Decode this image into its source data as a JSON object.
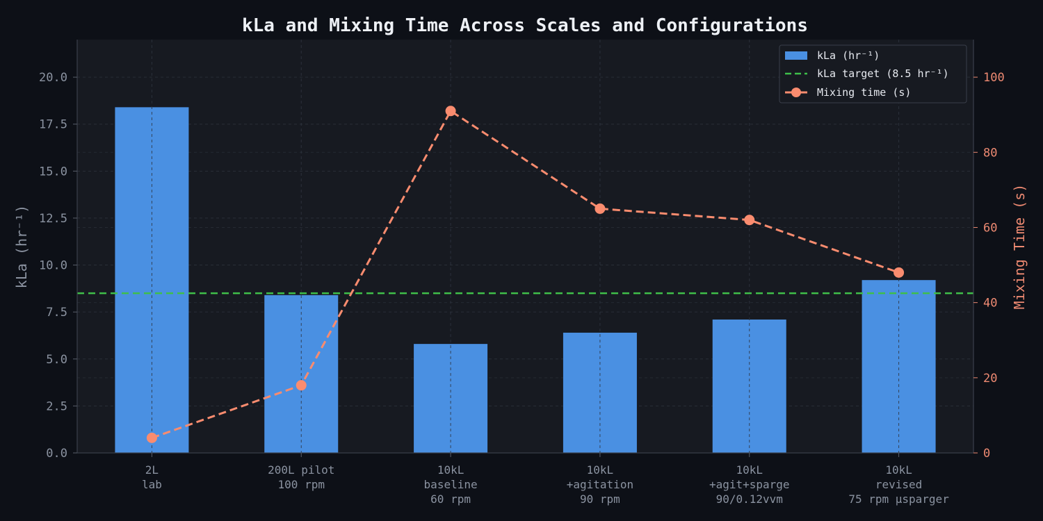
{
  "chart_data": {
    "type": "bar",
    "title": "kLa and Mixing Time Across Scales and Configurations",
    "categories": [
      [
        "2L",
        "lab"
      ],
      [
        "200L pilot",
        "100 rpm"
      ],
      [
        "10kL",
        "baseline",
        "60 rpm"
      ],
      [
        "10kL",
        "+agitation",
        "90 rpm"
      ],
      [
        "10kL",
        "+agit+sparge",
        "90/0.12vvm"
      ],
      [
        "10kL",
        "revised",
        "75 rpm µsparger"
      ]
    ],
    "series": [
      {
        "name": "kLa (hr⁻¹)",
        "type": "bar",
        "axis": "left",
        "values": [
          18.4,
          8.4,
          5.8,
          6.4,
          7.1,
          9.2
        ]
      },
      {
        "name": "Mixing time (s)",
        "type": "line",
        "axis": "right",
        "values": [
          4,
          18,
          91,
          65,
          62,
          48
        ]
      }
    ],
    "reference_line": {
      "name": "kLa target (8.5 hr⁻¹)",
      "value": 8.5,
      "axis": "left"
    },
    "ylabel_left": "kLa (hr⁻¹)",
    "ylabel_right": "Mixing Time (s)",
    "ylim_left": [
      0,
      22
    ],
    "ylim_right": [
      0,
      110
    ],
    "yticks_left": [
      "0.0",
      "2.5",
      "5.0",
      "7.5",
      "10.0",
      "12.5",
      "15.0",
      "17.5",
      "20.0"
    ],
    "yticks_right": [
      "0",
      "20",
      "40",
      "60",
      "80",
      "100"
    ],
    "grid": true,
    "legend_position": "top-right",
    "colors": {
      "bar": "#4a90e2",
      "line": "#fa8c6f",
      "target": "#3fbf4a",
      "axis_right": "#ee8a72",
      "text": "#8b93a1",
      "plot_bg": "#171a21",
      "page_bg": "#0d1017"
    }
  }
}
